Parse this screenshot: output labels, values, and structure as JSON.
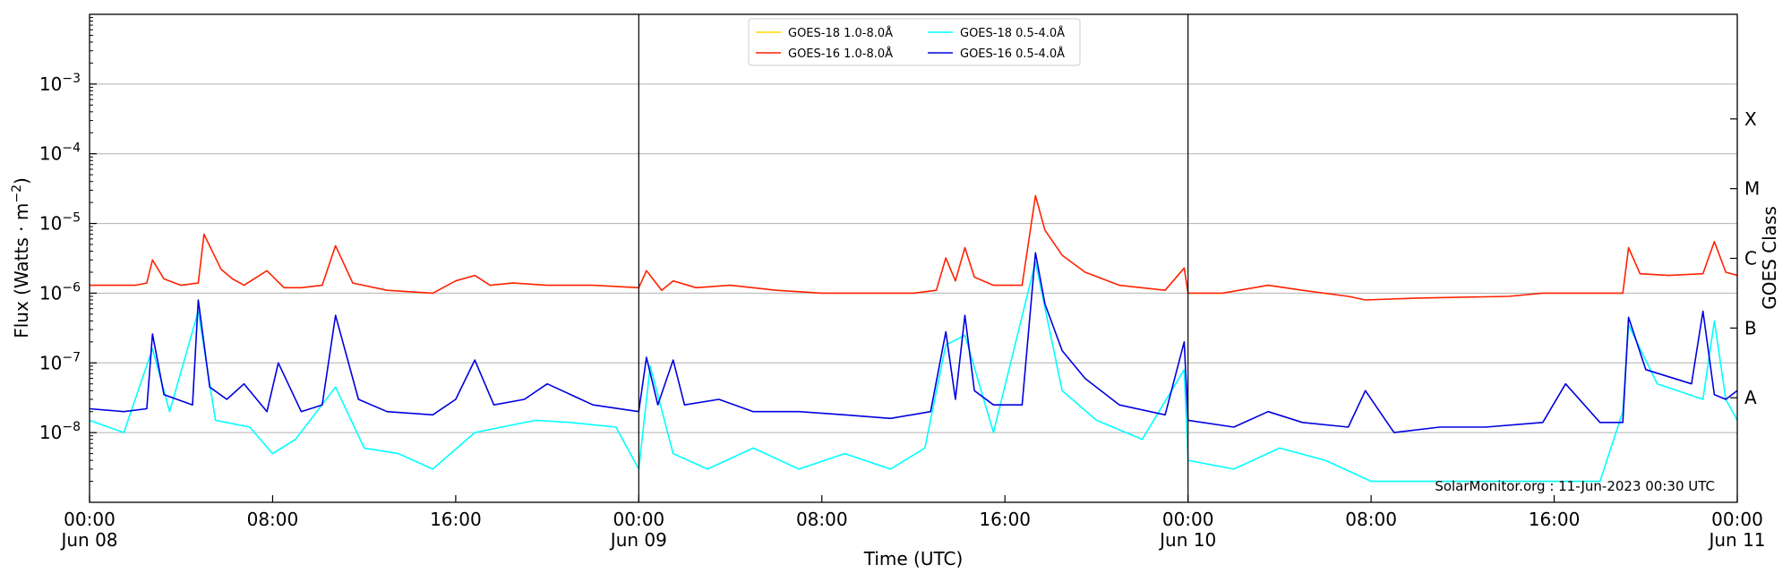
{
  "chart_data": {
    "type": "line",
    "xlabel": "Time (UTC)",
    "ylabel": "Flux (Watts · m⁻²)",
    "ylabel_base": "Flux (Watts · m",
    "ylabel_exp": "−2",
    "ylabel_close": ")",
    "right_label": "GOES Class",
    "y_scale": "log",
    "ylim": [
      1e-09,
      0.01
    ],
    "y_ticks": [
      {
        "value": 1e-08,
        "base": "10",
        "exp": "−8"
      },
      {
        "value": 1e-07,
        "base": "10",
        "exp": "−7"
      },
      {
        "value": 1e-06,
        "base": "10",
        "exp": "−6"
      },
      {
        "value": 1e-05,
        "base": "10",
        "exp": "−5"
      },
      {
        "value": 0.0001,
        "base": "10",
        "exp": "−4"
      },
      {
        "value": 0.001,
        "base": "10",
        "exp": "−3"
      }
    ],
    "classes": [
      {
        "label": "A",
        "value": 3.16e-08
      },
      {
        "label": "B",
        "value": 3.16e-07
      },
      {
        "label": "C",
        "value": 3.16e-06
      },
      {
        "label": "M",
        "value": 3.16e-05
      },
      {
        "label": "X",
        "value": 0.000316
      }
    ],
    "xlim": [
      "2023-06-08 00:00",
      "2023-06-11 00:00"
    ],
    "x_ticks": [
      {
        "time": "2023-06-08 00:00",
        "line1": "00:00",
        "line2": "Jun 08"
      },
      {
        "time": "2023-06-08 08:00",
        "line1": "08:00",
        "line2": ""
      },
      {
        "time": "2023-06-08 16:00",
        "line1": "16:00",
        "line2": ""
      },
      {
        "time": "2023-06-09 00:00",
        "line1": "00:00",
        "line2": "Jun 09"
      },
      {
        "time": "2023-06-09 08:00",
        "line1": "08:00",
        "line2": ""
      },
      {
        "time": "2023-06-09 16:00",
        "line1": "16:00",
        "line2": ""
      },
      {
        "time": "2023-06-10 00:00",
        "line1": "00:00",
        "line2": "Jun 10"
      },
      {
        "time": "2023-06-10 08:00",
        "line1": "08:00",
        "line2": ""
      },
      {
        "time": "2023-06-10 16:00",
        "line1": "16:00",
        "line2": ""
      },
      {
        "time": "2023-06-11 00:00",
        "line1": "00:00",
        "line2": "Jun 11"
      }
    ],
    "day_dividers": [
      "2023-06-09 00:00",
      "2023-06-10 00:00"
    ],
    "grid": "horizontal",
    "legend_position": "top-center",
    "annotation": "SolarMonitor.org : 11-Jun-2023 00:30 UTC",
    "series": [
      {
        "name": "GOES-18 1.0-8.0Å",
        "color": "#ffd700",
        "values": []
      },
      {
        "name": "GOES-16 1.0-8.0Å",
        "color": "#ff2200",
        "x": [
          "2023-06-08 00:00",
          "2023-06-08 02:00",
          "2023-06-08 02:30",
          "2023-06-08 02:45",
          "2023-06-08 03:15",
          "2023-06-08 04:00",
          "2023-06-08 04:45",
          "2023-06-08 05:00",
          "2023-06-08 05:45",
          "2023-06-08 06:15",
          "2023-06-08 06:45",
          "2023-06-08 07:45",
          "2023-06-08 08:30",
          "2023-06-08 09:15",
          "2023-06-08 10:10",
          "2023-06-08 10:45",
          "2023-06-08 11:30",
          "2023-06-08 13:00",
          "2023-06-08 15:00",
          "2023-06-08 16:00",
          "2023-06-08 16:50",
          "2023-06-08 17:30",
          "2023-06-08 18:30",
          "2023-06-08 20:00",
          "2023-06-08 22:00",
          "2023-06-09 00:00",
          "2023-06-09 00:20",
          "2023-06-09 01:00",
          "2023-06-09 01:30",
          "2023-06-09 02:30",
          "2023-06-09 04:00",
          "2023-06-09 06:00",
          "2023-06-09 08:00",
          "2023-06-09 10:00",
          "2023-06-09 12:00",
          "2023-06-09 13:00",
          "2023-06-09 13:25",
          "2023-06-09 13:50",
          "2023-06-09 14:15",
          "2023-06-09 14:40",
          "2023-06-09 15:30",
          "2023-06-09 16:45",
          "2023-06-09 17:20",
          "2023-06-09 17:45",
          "2023-06-09 18:30",
          "2023-06-09 19:30",
          "2023-06-09 21:00",
          "2023-06-09 23:00",
          "2023-06-09 23:50",
          "2023-06-10 00:00",
          "2023-06-10 01:30",
          "2023-06-10 03:30",
          "2023-06-10 05:00",
          "2023-06-10 07:00",
          "2023-06-10 07:45",
          "2023-06-10 10:00",
          "2023-06-10 14:00",
          "2023-06-10 15:30",
          "2023-06-10 18:00",
          "2023-06-10 19:00",
          "2023-06-10 19:15",
          "2023-06-10 19:45",
          "2023-06-10 21:00",
          "2023-06-10 22:30",
          "2023-06-10 23:00",
          "2023-06-10 23:30",
          "2023-06-11 00:00"
        ],
        "values": [
          1.3e-06,
          1.3e-06,
          1.4e-06,
          3e-06,
          1.6e-06,
          1.3e-06,
          1.4e-06,
          7e-06,
          2.2e-06,
          1.6e-06,
          1.3e-06,
          2.1e-06,
          1.2e-06,
          1.2e-06,
          1.3e-06,
          4.8e-06,
          1.4e-06,
          1.1e-06,
          1e-06,
          1.5e-06,
          1.8e-06,
          1.3e-06,
          1.4e-06,
          1.3e-06,
          1.3e-06,
          1.2e-06,
          2.1e-06,
          1.1e-06,
          1.5e-06,
          1.2e-06,
          1.3e-06,
          1.1e-06,
          1e-06,
          1e-06,
          1e-06,
          1.1e-06,
          3.2e-06,
          1.5e-06,
          4.5e-06,
          1.7e-06,
          1.3e-06,
          1.3e-06,
          2.5e-05,
          8e-06,
          3.5e-06,
          2e-06,
          1.3e-06,
          1.1e-06,
          2.3e-06,
          1e-06,
          1e-06,
          1.3e-06,
          1.1e-06,
          9e-07,
          8e-07,
          8.5e-07,
          9e-07,
          1e-06,
          1e-06,
          1e-06,
          4.5e-06,
          1.9e-06,
          1.8e-06,
          1.9e-06,
          5.5e-06,
          2e-06,
          1.8e-06
        ]
      },
      {
        "name": "GOES-18 0.5-4.0Å",
        "color": "#00ffff",
        "x": [
          "2023-06-08 00:00",
          "2023-06-08 01:30",
          "2023-06-08 02:45",
          "2023-06-08 03:30",
          "2023-06-08 04:45",
          "2023-06-08 05:30",
          "2023-06-08 07:00",
          "2023-06-08 08:00",
          "2023-06-08 09:00",
          "2023-06-08 10:45",
          "2023-06-08 12:00",
          "2023-06-08 13:30",
          "2023-06-08 15:00",
          "2023-06-08 16:50",
          "2023-06-08 18:00",
          "2023-06-08 19:30",
          "2023-06-08 21:00",
          "2023-06-08 23:00",
          "2023-06-09 00:00",
          "2023-06-09 00:30",
          "2023-06-09 01:30",
          "2023-06-09 03:00",
          "2023-06-09 05:00",
          "2023-06-09 07:00",
          "2023-06-09 09:00",
          "2023-06-09 11:00",
          "2023-06-09 12:30",
          "2023-06-09 13:25",
          "2023-06-09 14:15",
          "2023-06-09 15:30",
          "2023-06-09 17:20",
          "2023-06-09 18:30",
          "2023-06-09 20:00",
          "2023-06-09 22:00",
          "2023-06-09 23:50",
          "2023-06-10 00:00",
          "2023-06-10 02:00",
          "2023-06-10 04:00",
          "2023-06-10 06:00",
          "2023-06-10 08:00",
          "2023-06-10 10:00",
          "2023-06-10 12:00",
          "2023-06-10 14:00",
          "2023-06-10 16:00",
          "2023-06-10 18:00",
          "2023-06-10 19:00",
          "2023-06-10 19:15",
          "2023-06-10 20:30",
          "2023-06-10 22:30",
          "2023-06-10 23:00",
          "2023-06-10 23:30",
          "2023-06-11 00:00"
        ],
        "values": [
          1.5e-08,
          1e-08,
          1.6e-07,
          2e-08,
          5.5e-07,
          1.5e-08,
          1.2e-08,
          5e-09,
          8e-09,
          4.5e-08,
          6e-09,
          5e-09,
          3e-09,
          1e-08,
          1.2e-08,
          1.5e-08,
          1.4e-08,
          1.2e-08,
          3e-09,
          9e-08,
          5e-09,
          3e-09,
          6e-09,
          3e-09,
          5e-09,
          3e-09,
          6e-09,
          1.8e-07,
          2.5e-07,
          1e-08,
          2.8e-06,
          4e-08,
          1.5e-08,
          8e-09,
          8e-08,
          4e-09,
          3e-09,
          6e-09,
          4e-09,
          2e-09,
          2e-09,
          2e-09,
          2e-09,
          2e-09,
          2e-09,
          2e-08,
          3.5e-07,
          5e-08,
          3e-08,
          4e-07,
          3e-08,
          1.5e-08
        ]
      },
      {
        "name": "GOES-16 0.5-4.0Å",
        "color": "#0000e0",
        "x": [
          "2023-06-08 00:00",
          "2023-06-08 01:30",
          "2023-06-08 02:30",
          "2023-06-08 02:45",
          "2023-06-08 03:15",
          "2023-06-08 04:30",
          "2023-06-08 04:45",
          "2023-06-08 05:15",
          "2023-06-08 06:00",
          "2023-06-08 06:45",
          "2023-06-08 07:45",
          "2023-06-08 08:15",
          "2023-06-08 09:15",
          "2023-06-08 10:10",
          "2023-06-08 10:45",
          "2023-06-08 11:45",
          "2023-06-08 13:00",
          "2023-06-08 15:00",
          "2023-06-08 16:00",
          "2023-06-08 16:50",
          "2023-06-08 17:40",
          "2023-06-08 19:00",
          "2023-06-08 20:00",
          "2023-06-08 22:00",
          "2023-06-09 00:00",
          "2023-06-09 00:20",
          "2023-06-09 00:50",
          "2023-06-09 01:30",
          "2023-06-09 02:00",
          "2023-06-09 03:30",
          "2023-06-09 05:00",
          "2023-06-09 07:00",
          "2023-06-09 09:00",
          "2023-06-09 11:00",
          "2023-06-09 12:45",
          "2023-06-09 13:25",
          "2023-06-09 13:50",
          "2023-06-09 14:15",
          "2023-06-09 14:40",
          "2023-06-09 15:30",
          "2023-06-09 16:45",
          "2023-06-09 17:20",
          "2023-06-09 17:45",
          "2023-06-09 18:30",
          "2023-06-09 19:30",
          "2023-06-09 21:00",
          "2023-06-09 23:00",
          "2023-06-09 23:50",
          "2023-06-10 00:00",
          "2023-06-10 02:00",
          "2023-06-10 03:30",
          "2023-06-10 05:00",
          "2023-06-10 07:00",
          "2023-06-10 07:45",
          "2023-06-10 09:00",
          "2023-06-10 11:00",
          "2023-06-10 13:00",
          "2023-06-10 15:30",
          "2023-06-10 16:30",
          "2023-06-10 18:00",
          "2023-06-10 19:00",
          "2023-06-10 19:15",
          "2023-06-10 20:00",
          "2023-06-10 22:00",
          "2023-06-10 22:30",
          "2023-06-10 23:00",
          "2023-06-10 23:30",
          "2023-06-11 00:00"
        ],
        "values": [
          2.2e-08,
          2e-08,
          2.2e-08,
          2.6e-07,
          3.5e-08,
          2.5e-08,
          8e-07,
          4.5e-08,
          3e-08,
          5e-08,
          2e-08,
          1e-07,
          2e-08,
          2.5e-08,
          4.8e-07,
          3e-08,
          2e-08,
          1.8e-08,
          3e-08,
          1.1e-07,
          2.5e-08,
          3e-08,
          5e-08,
          2.5e-08,
          2e-08,
          1.2e-07,
          2.5e-08,
          1.1e-07,
          2.5e-08,
          3e-08,
          2e-08,
          2e-08,
          1.8e-08,
          1.6e-08,
          2e-08,
          2.8e-07,
          3e-08,
          4.8e-07,
          4e-08,
          2.5e-08,
          2.5e-08,
          3.8e-06,
          7e-07,
          1.5e-07,
          6e-08,
          2.5e-08,
          1.8e-08,
          2e-07,
          1.5e-08,
          1.2e-08,
          2e-08,
          1.4e-08,
          1.2e-08,
          4e-08,
          1e-08,
          1.2e-08,
          1.2e-08,
          1.4e-08,
          5e-08,
          1.4e-08,
          1.4e-08,
          4.5e-07,
          8e-08,
          5e-08,
          5.5e-07,
          3.5e-08,
          3e-08,
          4e-08
        ]
      }
    ]
  }
}
